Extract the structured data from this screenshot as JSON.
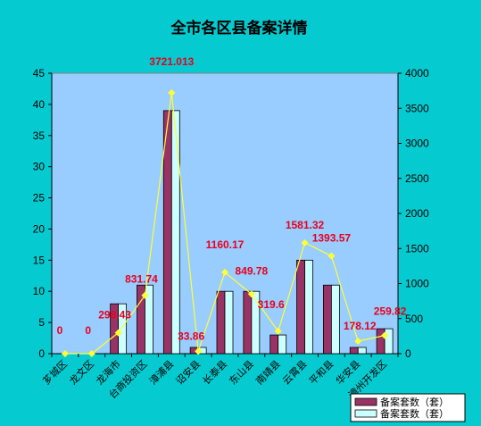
{
  "chart_data": {
    "type": "bar",
    "title": "全市各区县备案详情",
    "categories": [
      "芗城区",
      "龙文区",
      "龙海市",
      "台商投资区",
      "漳浦县",
      "诏安县",
      "长泰县",
      "东山县",
      "南靖县",
      "云霄县",
      "平和县",
      "华安县",
      "漳州开发区"
    ],
    "series": [
      {
        "name": "备案套数（套）",
        "axis": "left",
        "color": "#993366",
        "values": [
          0,
          0,
          8,
          11,
          39,
          1,
          10,
          10,
          3,
          15,
          11,
          1,
          4
        ]
      },
      {
        "name": "备案套数（套）",
        "axis": "left",
        "color": "#ccffff",
        "values": [
          0,
          0,
          8,
          11,
          39,
          1,
          10,
          10,
          3,
          15,
          11,
          1,
          4
        ]
      },
      {
        "axis": "right",
        "color": "#ffff33",
        "type": "line",
        "values": [
          0,
          0,
          298.43,
          831.74,
          3721.013,
          33.86,
          1160.17,
          849.78,
          319.6,
          1581.32,
          1393.57,
          178.12,
          259.82
        ]
      }
    ],
    "data_labels": [
      "0",
      "0",
      "298.43",
      "831.74",
      "3721.013",
      "33.86",
      "1160.17",
      "849.78",
      "319.6",
      "1581.32",
      "1393.57",
      "178.12",
      "259.82"
    ],
    "ylim": [
      0,
      45
    ],
    "yticks": [
      0,
      5,
      10,
      15,
      20,
      25,
      30,
      35,
      40,
      45
    ],
    "y2lim": [
      0,
      4000
    ],
    "y2ticks": [
      0,
      500,
      1000,
      1500,
      2000,
      2500,
      3000,
      3500,
      4000
    ],
    "grid": false,
    "legend_position": "bottom-right",
    "plot_background": "#99ccff",
    "figure_background": "#05cbd1",
    "label_color": "#e8001c"
  }
}
